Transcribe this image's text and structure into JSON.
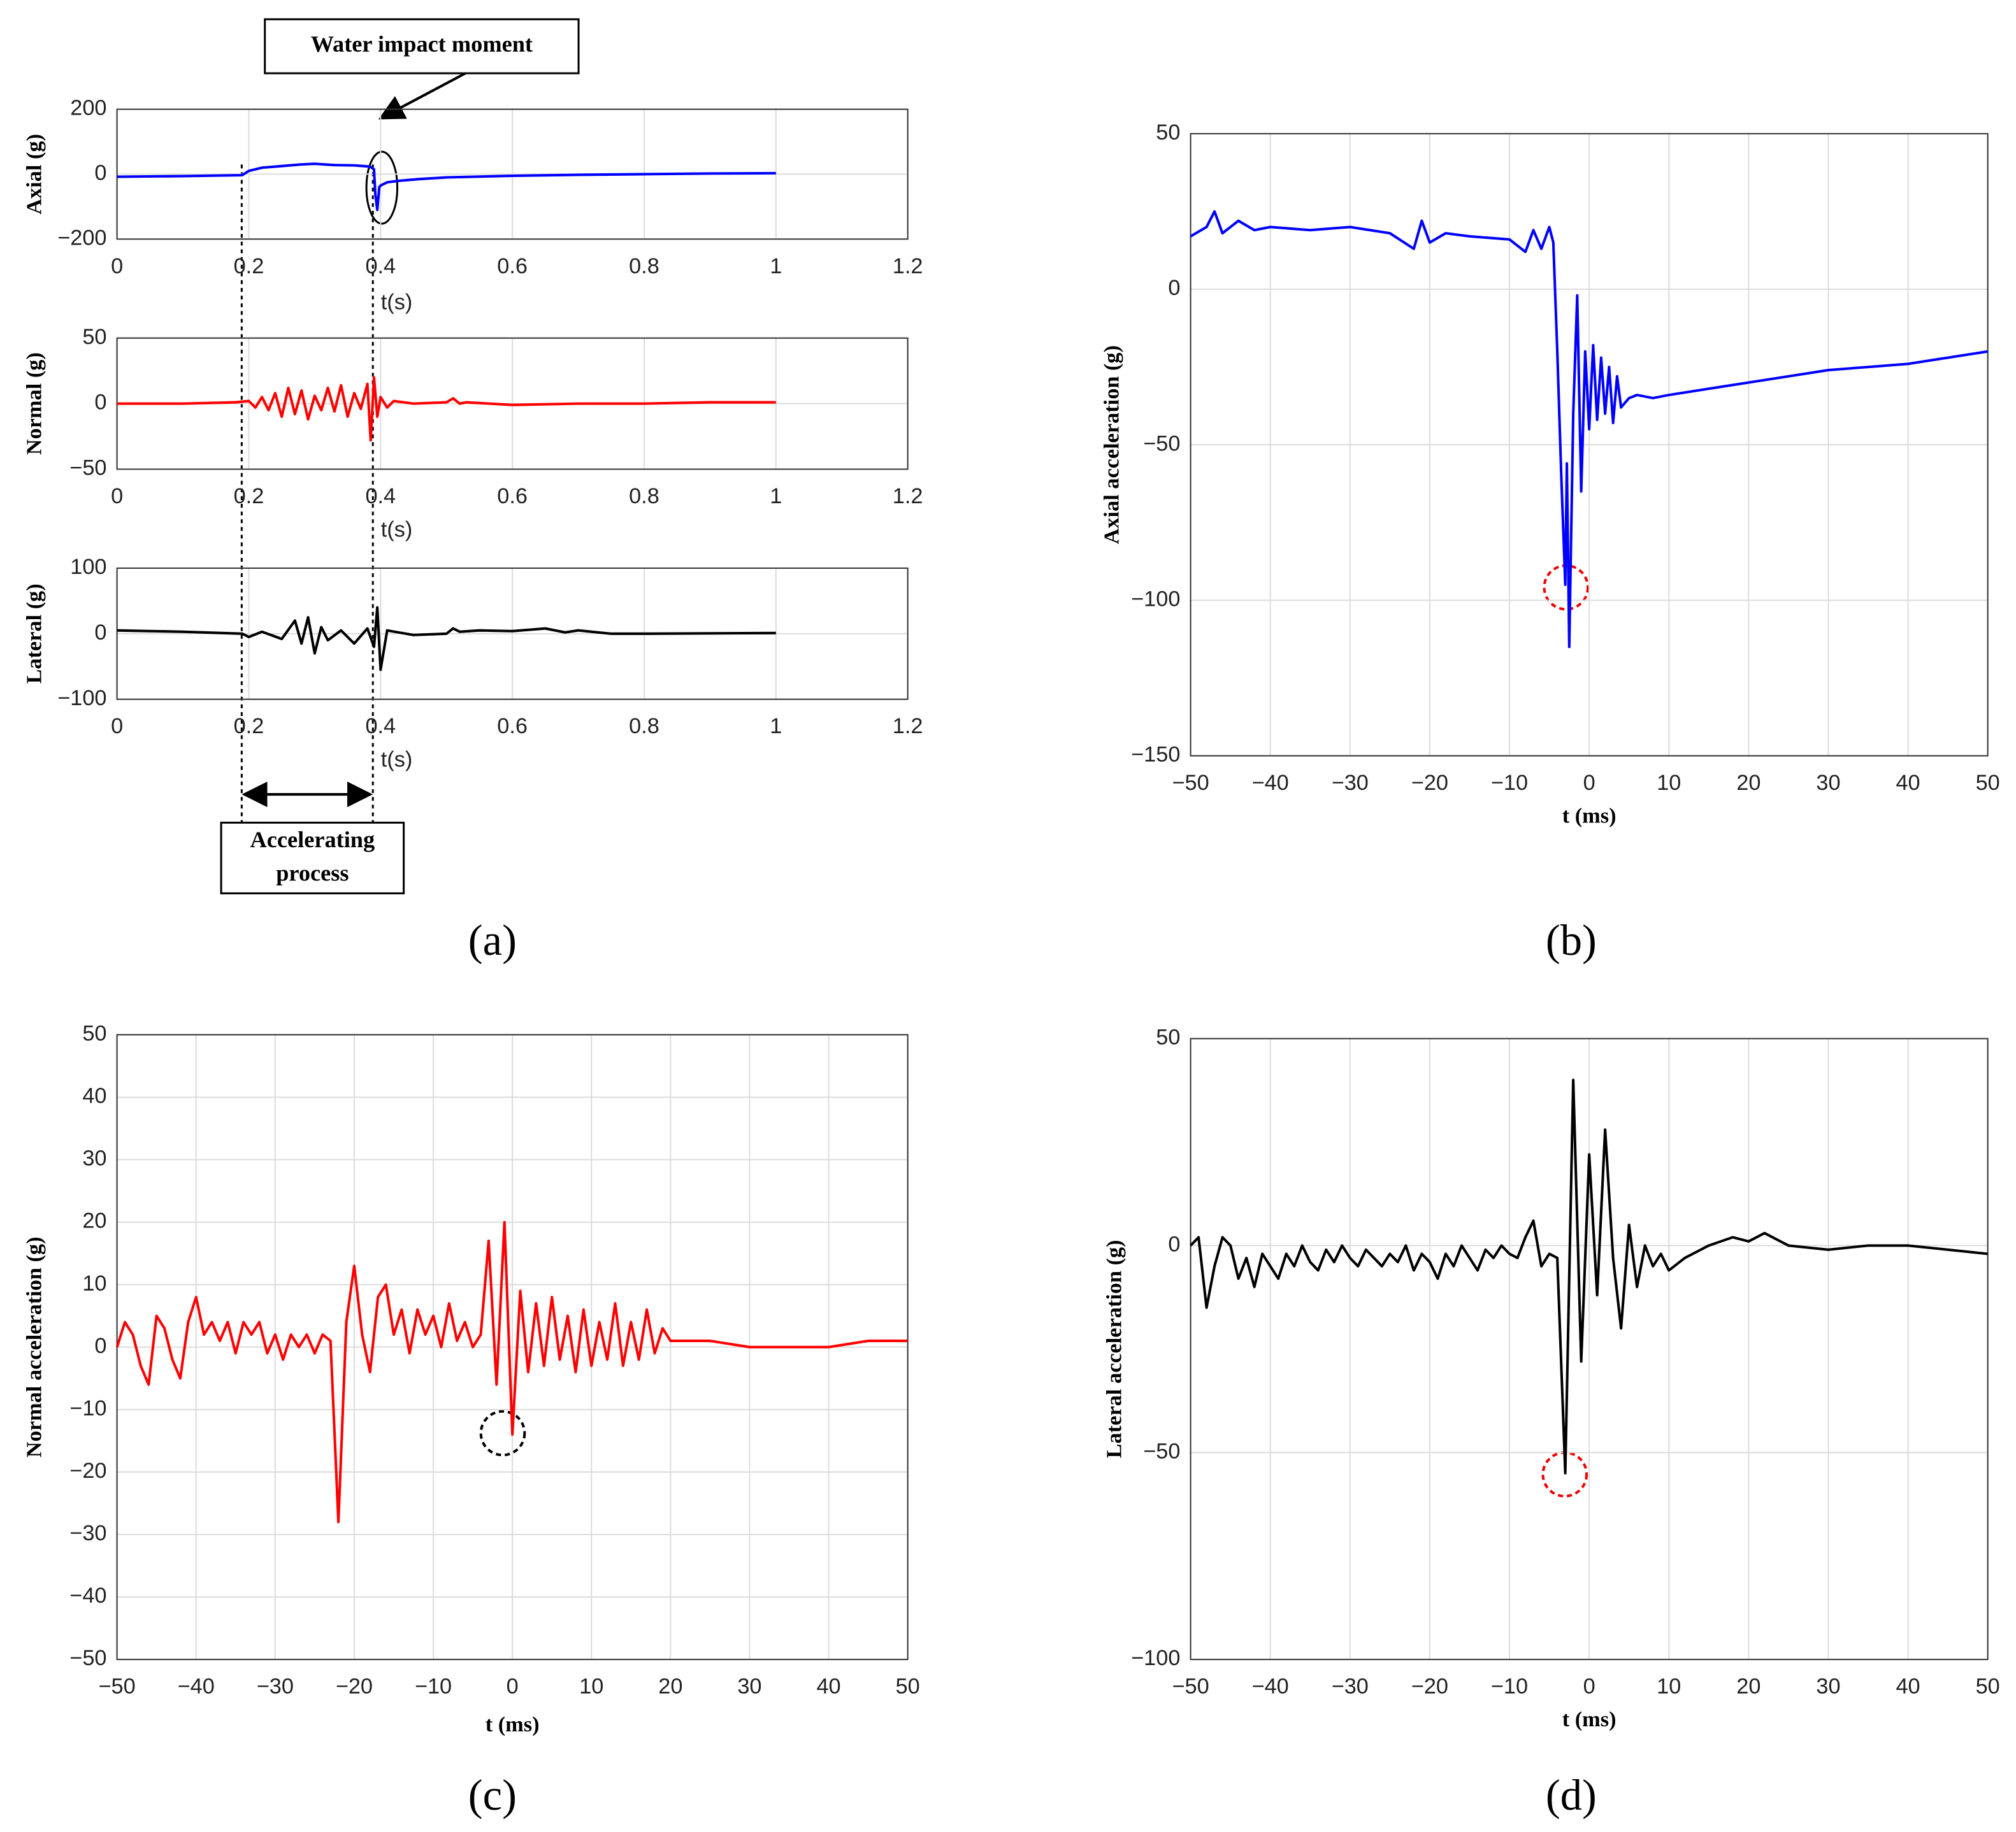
{
  "chart_data": [
    {
      "type": "line",
      "ylabel": "Axial (g)",
      "xlabel": "t(s)",
      "annotation": "Water impact moment",
      "x": [
        0,
        0.1,
        0.19,
        0.2,
        0.22,
        0.25,
        0.28,
        0.3,
        0.33,
        0.36,
        0.38,
        0.385,
        0.39,
        0.392,
        0.395,
        0.398,
        0.4,
        0.405,
        0.41,
        0.43,
        0.46,
        0.5,
        0.6,
        0.7,
        0.8,
        0.9,
        1
      ],
      "values": [
        -8,
        -6,
        -3,
        10,
        20,
        25,
        30,
        32,
        28,
        27,
        24,
        22,
        15,
        -60,
        -110,
        -40,
        -35,
        -30,
        -25,
        -20,
        -15,
        -10,
        -5,
        -2,
        0,
        2,
        3
      ],
      "color": "#0000ff",
      "xlim": [
        0,
        1.2
      ],
      "ylim": [
        -200,
        200
      ],
      "xticks": [
        0,
        0.2,
        0.4,
        0.6,
        0.8,
        1,
        1.2
      ],
      "yticks": [
        {
          "value": -200,
          "label": "−200"
        },
        0,
        200
      ],
      "grid": true
    },
    {
      "type": "line",
      "ylabel": "Normal (g)",
      "xlabel": "t(s)",
      "x": [
        0,
        0.1,
        0.18,
        0.2,
        0.21,
        0.22,
        0.23,
        0.24,
        0.25,
        0.26,
        0.27,
        0.28,
        0.29,
        0.3,
        0.31,
        0.32,
        0.33,
        0.34,
        0.35,
        0.36,
        0.37,
        0.38,
        0.385,
        0.39,
        0.395,
        0.4,
        0.41,
        0.42,
        0.45,
        0.5,
        0.51,
        0.52,
        0.53,
        0.6,
        0.7,
        0.8,
        0.9,
        1
      ],
      "values": [
        0,
        0,
        1,
        2,
        -3,
        5,
        -5,
        8,
        -10,
        12,
        -8,
        10,
        -12,
        6,
        -5,
        12,
        -6,
        14,
        -10,
        8,
        -4,
        15,
        -28,
        20,
        -10,
        5,
        -3,
        2,
        0,
        1,
        4,
        0,
        1,
        -1,
        0,
        0,
        1,
        1
      ],
      "color": "#ff0000",
      "xlim": [
        0,
        1.2
      ],
      "ylim": [
        -50,
        50
      ],
      "xticks": [
        0,
        0.2,
        0.4,
        0.6,
        0.8,
        1,
        1.2
      ],
      "yticks": [
        {
          "value": -50,
          "label": "−50"
        },
        0,
        50
      ],
      "grid": true
    },
    {
      "type": "line",
      "ylabel": "Lateral (g)",
      "xlabel": "t(s)",
      "annotation_lines": [
        "Accelerating",
        "process"
      ],
      "panel_label": "(a)",
      "x": [
        0,
        0.1,
        0.19,
        0.2,
        0.22,
        0.25,
        0.27,
        0.28,
        0.29,
        0.3,
        0.31,
        0.32,
        0.34,
        0.36,
        0.38,
        0.39,
        0.395,
        0.4,
        0.41,
        0.45,
        0.5,
        0.51,
        0.52,
        0.55,
        0.6,
        0.65,
        0.68,
        0.7,
        0.75,
        0.8,
        1
      ],
      "values": [
        5,
        3,
        0,
        -5,
        3,
        -8,
        20,
        -15,
        25,
        -30,
        10,
        -10,
        5,
        -15,
        8,
        -20,
        40,
        -55,
        5,
        -2,
        0,
        8,
        3,
        5,
        4,
        8,
        2,
        5,
        0,
        0,
        1
      ],
      "color": "#000000",
      "xlim": [
        0,
        1.2
      ],
      "ylim": [
        -100,
        100
      ],
      "xticks": [
        0,
        0.2,
        0.4,
        0.6,
        0.8,
        1,
        1.2
      ],
      "yticks": [
        {
          "value": -100,
          "label": "−100"
        },
        0,
        100
      ],
      "grid": true
    },
    {
      "type": "line",
      "ylabel": "Axial acceleration (g)",
      "xlabel": "t (ms)",
      "panel_label": "(b)",
      "x": [
        -50,
        -48,
        -47,
        -46,
        -44,
        -42,
        -40,
        -35,
        -30,
        -25,
        -22,
        -21,
        -20,
        -18,
        -15,
        -10,
        -8,
        -7,
        -6,
        -5,
        -4.5,
        -4,
        -3.5,
        -3,
        -2.8,
        -2.5,
        -2.2,
        -2,
        -1.5,
        -1,
        -0.5,
        0,
        0.5,
        1,
        1.5,
        2,
        2.5,
        3,
        3.5,
        4,
        5,
        6,
        8,
        10,
        15,
        20,
        25,
        30,
        35,
        40,
        45,
        50
      ],
      "values": [
        17,
        20,
        25,
        18,
        22,
        19,
        20,
        19,
        20,
        18,
        13,
        22,
        15,
        18,
        17,
        16,
        12,
        19,
        13,
        20,
        15,
        -20,
        -60,
        -95,
        -56,
        -115,
        -70,
        -40,
        -2,
        -65,
        -20,
        -45,
        -18,
        -42,
        -22,
        -40,
        -25,
        -43,
        -28,
        -38,
        -35,
        -34,
        -35,
        -34,
        -32,
        -30,
        -28,
        -26,
        -25,
        -24,
        -22,
        -20
      ],
      "color": "#0000ff",
      "xlim": [
        -50,
        50
      ],
      "ylim": [
        -150,
        50
      ],
      "xticks": [
        {
          "value": -50,
          "label": "−50"
        },
        {
          "value": -40,
          "label": "−40"
        },
        {
          "value": -30,
          "label": "−30"
        },
        {
          "value": -20,
          "label": "−20"
        },
        {
          "value": -10,
          "label": "−10"
        },
        0,
        10,
        20,
        30,
        40,
        50
      ],
      "yticks": [
        {
          "value": -150,
          "label": "−150"
        },
        {
          "value": -100,
          "label": "−100"
        },
        {
          "value": -50,
          "label": "−50"
        },
        0,
        50
      ],
      "grid": true
    },
    {
      "type": "line",
      "ylabel": "Normal acceleration (g)",
      "xlabel": "t (ms)",
      "panel_label": "(c)",
      "x": [
        -50,
        -49,
        -48,
        -47,
        -46,
        -45,
        -44,
        -43,
        -42,
        -41,
        -40,
        -39,
        -38,
        -37,
        -36,
        -35,
        -34,
        -33,
        -32,
        -31,
        -30,
        -29,
        -28,
        -27,
        -26,
        -25,
        -24,
        -23,
        -22,
        -21,
        -20,
        -19,
        -18,
        -17,
        -16,
        -15,
        -14,
        -13,
        -12,
        -11,
        -10,
        -9,
        -8,
        -7,
        -6,
        -5,
        -4,
        -3,
        -2,
        -1,
        0,
        1,
        2,
        3,
        4,
        5,
        6,
        7,
        8,
        9,
        10,
        11,
        12,
        13,
        14,
        15,
        16,
        17,
        18,
        19,
        20,
        25,
        30,
        35,
        40,
        45,
        50
      ],
      "values": [
        0,
        4,
        2,
        -3,
        -6,
        5,
        3,
        -2,
        -5,
        4,
        8,
        2,
        4,
        1,
        4,
        -1,
        4,
        2,
        4,
        -1,
        2,
        -2,
        2,
        0,
        2,
        -1,
        2,
        1,
        -28,
        4,
        13,
        2,
        -4,
        8,
        10,
        2,
        6,
        -1,
        6,
        2,
        5,
        0,
        7,
        1,
        4,
        0,
        2,
        17,
        -6,
        20,
        -14,
        9,
        -4,
        7,
        -3,
        8,
        -2,
        5,
        -4,
        6,
        -3,
        4,
        -2,
        7,
        -3,
        4,
        -2,
        6,
        -1,
        3,
        1,
        1,
        0,
        0,
        0,
        1,
        1
      ],
      "color": "#ff0000",
      "xlim": [
        -50,
        50
      ],
      "ylim": [
        -50,
        50
      ],
      "xticks": [
        {
          "value": -50,
          "label": "−50"
        },
        {
          "value": -40,
          "label": "−40"
        },
        {
          "value": -30,
          "label": "−30"
        },
        {
          "value": -20,
          "label": "−20"
        },
        {
          "value": -10,
          "label": "−10"
        },
        0,
        10,
        20,
        30,
        40,
        50
      ],
      "yticks": [
        {
          "value": -50,
          "label": "−50"
        },
        {
          "value": -40,
          "label": "−40"
        },
        {
          "value": -30,
          "label": "−30"
        },
        {
          "value": -20,
          "label": "−20"
        },
        {
          "value": -10,
          "label": "−10"
        },
        0,
        10,
        20,
        30,
        40,
        50
      ],
      "grid": true
    },
    {
      "type": "line",
      "ylabel": "Lateral acceleration (g)",
      "xlabel": "t (ms)",
      "panel_label": "(d)",
      "x": [
        -50,
        -49,
        -48,
        -47,
        -46,
        -45,
        -44,
        -43,
        -42,
        -41,
        -40,
        -39,
        -38,
        -37,
        -36,
        -35,
        -34,
        -33,
        -32,
        -31,
        -30,
        -29,
        -28,
        -27,
        -26,
        -25,
        -24,
        -23,
        -22,
        -21,
        -20,
        -19,
        -18,
        -17,
        -16,
        -15,
        -14,
        -13,
        -12,
        -11,
        -10,
        -9,
        -8,
        -7,
        -6,
        -5,
        -4,
        -3,
        -2,
        -1,
        0,
        1,
        2,
        3,
        4,
        5,
        6,
        7,
        8,
        9,
        10,
        12,
        15,
        18,
        20,
        22,
        25,
        30,
        35,
        40,
        45,
        50
      ],
      "values": [
        0,
        2,
        -15,
        -5,
        2,
        0,
        -8,
        -3,
        -10,
        -2,
        -5,
        -8,
        -2,
        -5,
        0,
        -4,
        -6,
        -1,
        -4,
        0,
        -3,
        -5,
        -1,
        -3,
        -5,
        -2,
        -4,
        0,
        -6,
        -2,
        -4,
        -8,
        -2,
        -5,
        0,
        -3,
        -6,
        -1,
        -3,
        0,
        -2,
        -3,
        2,
        6,
        -5,
        -2,
        -3,
        -55,
        40,
        -28,
        22,
        -12,
        28,
        -3,
        -20,
        5,
        -10,
        0,
        -5,
        -2,
        -6,
        -3,
        0,
        2,
        1,
        3,
        0,
        -1,
        0,
        0,
        -1,
        -2
      ],
      "color": "#000000",
      "xlim": [
        -50,
        50
      ],
      "ylim": [
        -100,
        50
      ],
      "xticks": [
        {
          "value": -50,
          "label": "−50"
        },
        {
          "value": -40,
          "label": "−40"
        },
        {
          "value": -30,
          "label": "−30"
        },
        {
          "value": -20,
          "label": "−20"
        },
        {
          "value": -10,
          "label": "−10"
        },
        0,
        10,
        20,
        30,
        40,
        50
      ],
      "yticks": [
        {
          "value": -100,
          "label": "−100"
        },
        {
          "value": -50,
          "label": "−50"
        },
        0,
        50
      ],
      "grid": true
    }
  ]
}
